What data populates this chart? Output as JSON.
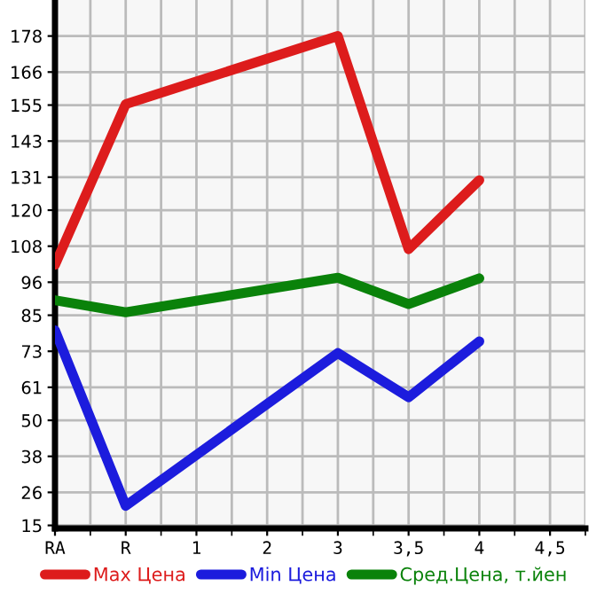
{
  "chart_data": {
    "type": "line",
    "categories": [
      "RA",
      "R",
      "1",
      "2",
      "3",
      "3,5",
      "4",
      "4,5"
    ],
    "series": [
      {
        "name": "Max Цена",
        "color": "#dd1c1c",
        "values": [
          101.8,
          155.3,
          null,
          null,
          178,
          107,
          130,
          null
        ]
      },
      {
        "name": "Min Цена",
        "color": "#1c1cdd",
        "values": [
          80,
          21.5,
          null,
          null,
          72.4,
          57.7,
          76.3,
          null
        ]
      },
      {
        "name": "Сред.Цена, т.йен",
        "color": "#0a820a",
        "values": [
          90,
          86,
          null,
          null,
          97.5,
          88.7,
          97.3,
          null
        ]
      }
    ],
    "ylim": [
      14,
      190
    ],
    "yticks": [
      15,
      26,
      38,
      50,
      61,
      73,
      85,
      96,
      108,
      120,
      131,
      143,
      155,
      166,
      178
    ],
    "grid": true,
    "legend": "bottom",
    "marker": "none",
    "line_style": "solid"
  }
}
